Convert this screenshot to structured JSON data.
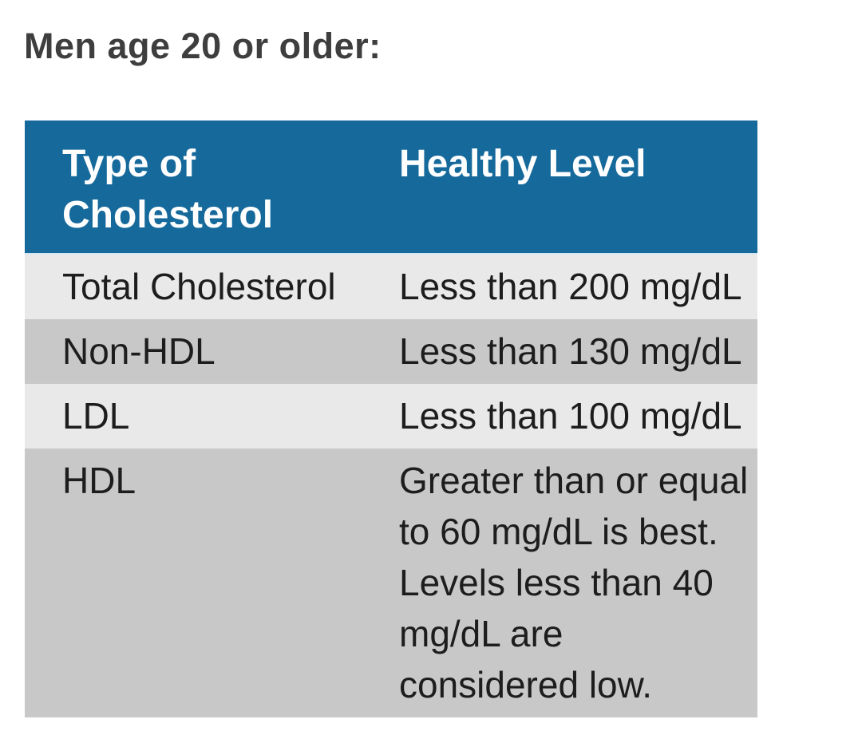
{
  "page": {
    "heading": "Men age 20 or older:"
  },
  "colors": {
    "page_background": "#ffffff",
    "heading_text": "#3e3e3e",
    "table_header_background": "#15699b",
    "table_header_text": "#ffffff",
    "row_light_background": "#e9e9e9",
    "row_dark_background": "#c8c8c8",
    "body_text": "#1d1d1d",
    "header_separator": "#d6e7f2"
  },
  "table": {
    "columns": [
      "Type of Cholesterol",
      "Healthy Level"
    ],
    "rows": [
      {
        "type": "Total Cholesterol",
        "level": "Less than 200 mg/dL"
      },
      {
        "type": "Non-HDL",
        "level": "Less than 130 mg/dL"
      },
      {
        "type": "LDL",
        "level": "Less than 100 mg/dL"
      },
      {
        "type": "HDL",
        "level": "Greater than or equal to 60 mg/dL is best. Levels less than 40 mg/dL are considered low.",
        "level_lines": [
          "Greater than or equal",
          "to 60 mg/dL is best.",
          "Levels less than 40",
          "mg/dL are",
          "considered low."
        ]
      }
    ]
  }
}
